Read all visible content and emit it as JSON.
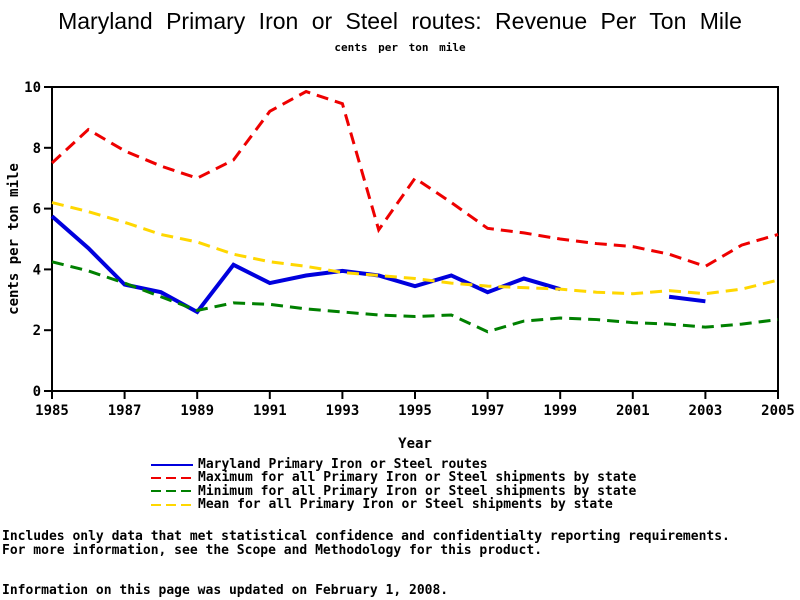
{
  "footnotes": {
    "line1": "Includes only data that met statistical confidence and confidentialty reporting requirements.",
    "line2": "For more information, see the Scope and Methodology for this product.",
    "updated": "Information on this page was updated on February 1, 2008."
  },
  "chart_data": {
    "type": "line",
    "title": "Maryland Primary Iron or Steel routes: Revenue Per Ton Mile",
    "subtitle": "cents per ton mile",
    "xlabel": "Year",
    "ylabel": "cents per ton mile",
    "xlim": [
      1985,
      2005
    ],
    "ylim": [
      0,
      10
    ],
    "x_ticks": [
      1985,
      1987,
      1989,
      1991,
      1993,
      1995,
      1997,
      1999,
      2001,
      2003,
      2005
    ],
    "y_ticks": [
      0,
      2,
      4,
      6,
      8,
      10
    ],
    "grid": false,
    "legend_position": "bottom",
    "x": [
      1985,
      1986,
      1987,
      1988,
      1989,
      1990,
      1991,
      1992,
      1993,
      1994,
      1995,
      1996,
      1997,
      1998,
      1999,
      2000,
      2001,
      2002,
      2003,
      2004,
      2005
    ],
    "series": [
      {
        "name": "Maryland Primary Iron or Steel routes",
        "color": "#0000dd",
        "style": "solid",
        "width": 4,
        "values": [
          5.75,
          4.7,
          3.5,
          3.25,
          2.6,
          4.15,
          3.55,
          3.8,
          3.95,
          3.8,
          3.45,
          3.8,
          3.25,
          3.7,
          3.35,
          null,
          null,
          3.1,
          2.95,
          null,
          null
        ]
      },
      {
        "name": "Maximum for all Primary Iron or Steel shipments by state",
        "color": "#ee0000",
        "style": "dashed",
        "width": 3,
        "values": [
          7.5,
          8.6,
          7.9,
          7.4,
          7.0,
          7.6,
          9.2,
          9.85,
          9.45,
          5.3,
          7.0,
          6.2,
          5.35,
          5.2,
          5.0,
          4.85,
          4.75,
          4.5,
          4.1,
          4.8,
          5.15
        ]
      },
      {
        "name": "Minimum for all Primary Iron or Steel shipments by state",
        "color": "#008000",
        "style": "dashed",
        "width": 3,
        "values": [
          4.25,
          3.95,
          3.55,
          3.1,
          2.65,
          2.9,
          2.85,
          2.7,
          2.6,
          2.5,
          2.45,
          2.5,
          1.95,
          2.3,
          2.4,
          2.35,
          2.25,
          2.2,
          2.1,
          2.2,
          2.35
        ]
      },
      {
        "name": "Mean for all Primary Iron or Steel shipments by state",
        "color": "#ffd700",
        "style": "dashed",
        "width": 3,
        "values": [
          6.2,
          5.9,
          5.55,
          5.15,
          4.9,
          4.5,
          4.25,
          4.1,
          3.9,
          3.8,
          3.7,
          3.55,
          3.45,
          3.4,
          3.35,
          3.25,
          3.2,
          3.3,
          3.2,
          3.35,
          3.65
        ]
      }
    ]
  }
}
